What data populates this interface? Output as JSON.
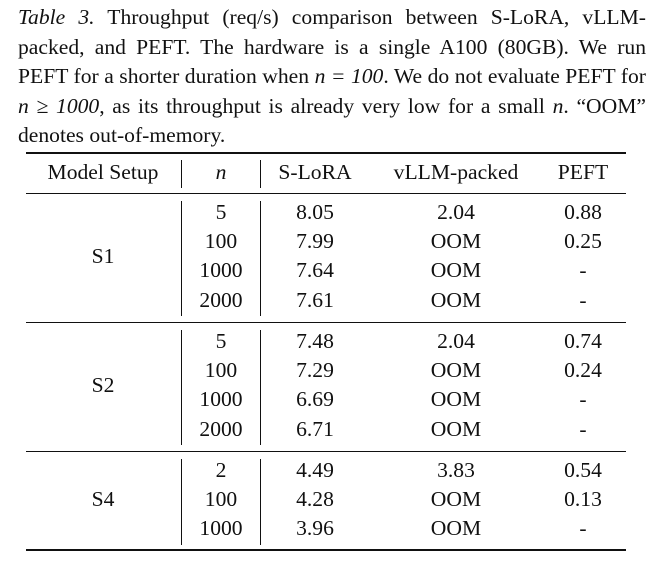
{
  "caption": {
    "label": "Table 3.",
    "part1": " Throughput (req/s) comparison between S-LoRA, vLLM-packed, and PEFT. The hardware is a single A100 (80GB). We run PEFT for a shorter duration when ",
    "math1": "n = 100",
    "part2": ". We do not evaluate PEFT for ",
    "math2": "n ≥ 1000",
    "part3": ", as its throughput is already very low for a small ",
    "math3": "n",
    "part4": ". “OOM” denotes out-of-memory."
  },
  "table": {
    "headers": [
      "Model Setup",
      "n",
      "S-LoRA",
      "vLLM-packed",
      "PEFT"
    ],
    "groups": [
      {
        "setup": "S1",
        "rows": [
          [
            "5",
            "8.05",
            "2.04",
            "0.88"
          ],
          [
            "100",
            "7.99",
            "OOM",
            "0.25"
          ],
          [
            "1000",
            "7.64",
            "OOM",
            "-"
          ],
          [
            "2000",
            "7.61",
            "OOM",
            "-"
          ]
        ]
      },
      {
        "setup": "S2",
        "rows": [
          [
            "5",
            "7.48",
            "2.04",
            "0.74"
          ],
          [
            "100",
            "7.29",
            "OOM",
            "0.24"
          ],
          [
            "1000",
            "6.69",
            "OOM",
            "-"
          ],
          [
            "2000",
            "6.71",
            "OOM",
            "-"
          ]
        ]
      },
      {
        "setup": "S4",
        "rows": [
          [
            "2",
            "4.49",
            "3.83",
            "0.54"
          ],
          [
            "100",
            "4.28",
            "OOM",
            "0.13"
          ],
          [
            "1000",
            "3.96",
            "OOM",
            "-"
          ]
        ]
      }
    ]
  }
}
